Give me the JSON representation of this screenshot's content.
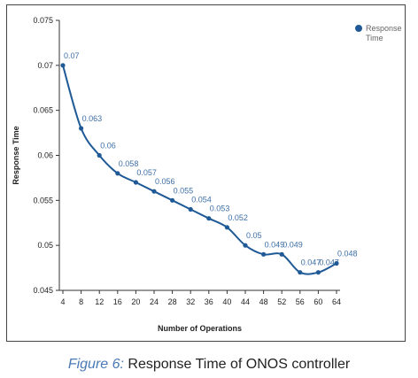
{
  "chart_data": {
    "type": "line",
    "title": "",
    "xlabel": "Number of Operations",
    "ylabel": "Response Time",
    "x": [
      4,
      8,
      12,
      16,
      20,
      24,
      28,
      32,
      36,
      40,
      44,
      48,
      52,
      56,
      60,
      64
    ],
    "series": [
      {
        "name": "Response Time",
        "values": [
          0.07,
          0.063,
          0.06,
          0.058,
          0.057,
          0.056,
          0.055,
          0.054,
          0.053,
          0.052,
          0.05,
          0.049,
          0.049,
          0.047,
          0.047,
          0.048
        ],
        "color": "#1f5a96"
      }
    ],
    "data_labels": [
      "0.07",
      "0.063",
      "0.06",
      "0.058",
      "0.057",
      "0.056",
      "0.055",
      "0.054",
      "0.053",
      "0.052",
      "0.05",
      "0.049",
      "0.049",
      "0.047",
      "0.047",
      "0.048"
    ],
    "ylim": [
      0.045,
      0.075
    ],
    "yticks": [
      "0.045",
      "0.05",
      "0.055",
      "0.06",
      "0.065",
      "0.07",
      "0.075"
    ],
    "grid": false,
    "legend": {
      "placement": "top-right",
      "label_line1": "Response",
      "label_line2": "Time"
    }
  },
  "caption": {
    "figure": "Figure 6:",
    "text": " Response Time of ONOS controller"
  }
}
